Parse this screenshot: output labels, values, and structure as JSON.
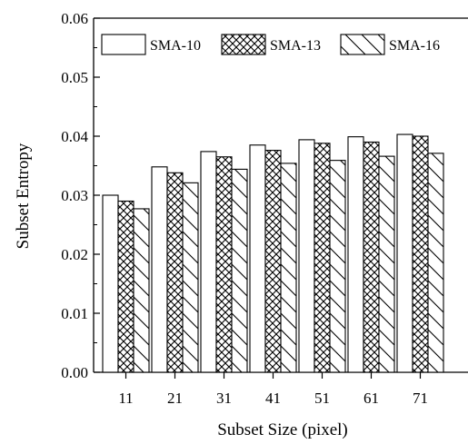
{
  "chart_data": {
    "type": "bar",
    "xlabel": "Subset Size (pixel)",
    "ylabel": "Subset Entropy",
    "categories": [
      "11",
      "21",
      "31",
      "41",
      "51",
      "61",
      "71"
    ],
    "ylim": [
      0,
      0.06
    ],
    "yticks": [
      "0.00",
      "0.01",
      "0.02",
      "0.03",
      "0.04",
      "0.05",
      "0.06"
    ],
    "legend_position": "top",
    "series": [
      {
        "name": "SMA-10",
        "pattern": "solid-white",
        "values": [
          0.03,
          0.0348,
          0.0374,
          0.0385,
          0.0394,
          0.0399,
          0.0403
        ]
      },
      {
        "name": "SMA-13",
        "pattern": "crosshatch",
        "values": [
          0.029,
          0.0338,
          0.0365,
          0.0376,
          0.0388,
          0.039,
          0.04
        ]
      },
      {
        "name": "SMA-16",
        "pattern": "diagonal-hatch",
        "values": [
          0.0277,
          0.0321,
          0.0344,
          0.0354,
          0.0359,
          0.0366,
          0.0371
        ]
      }
    ]
  }
}
